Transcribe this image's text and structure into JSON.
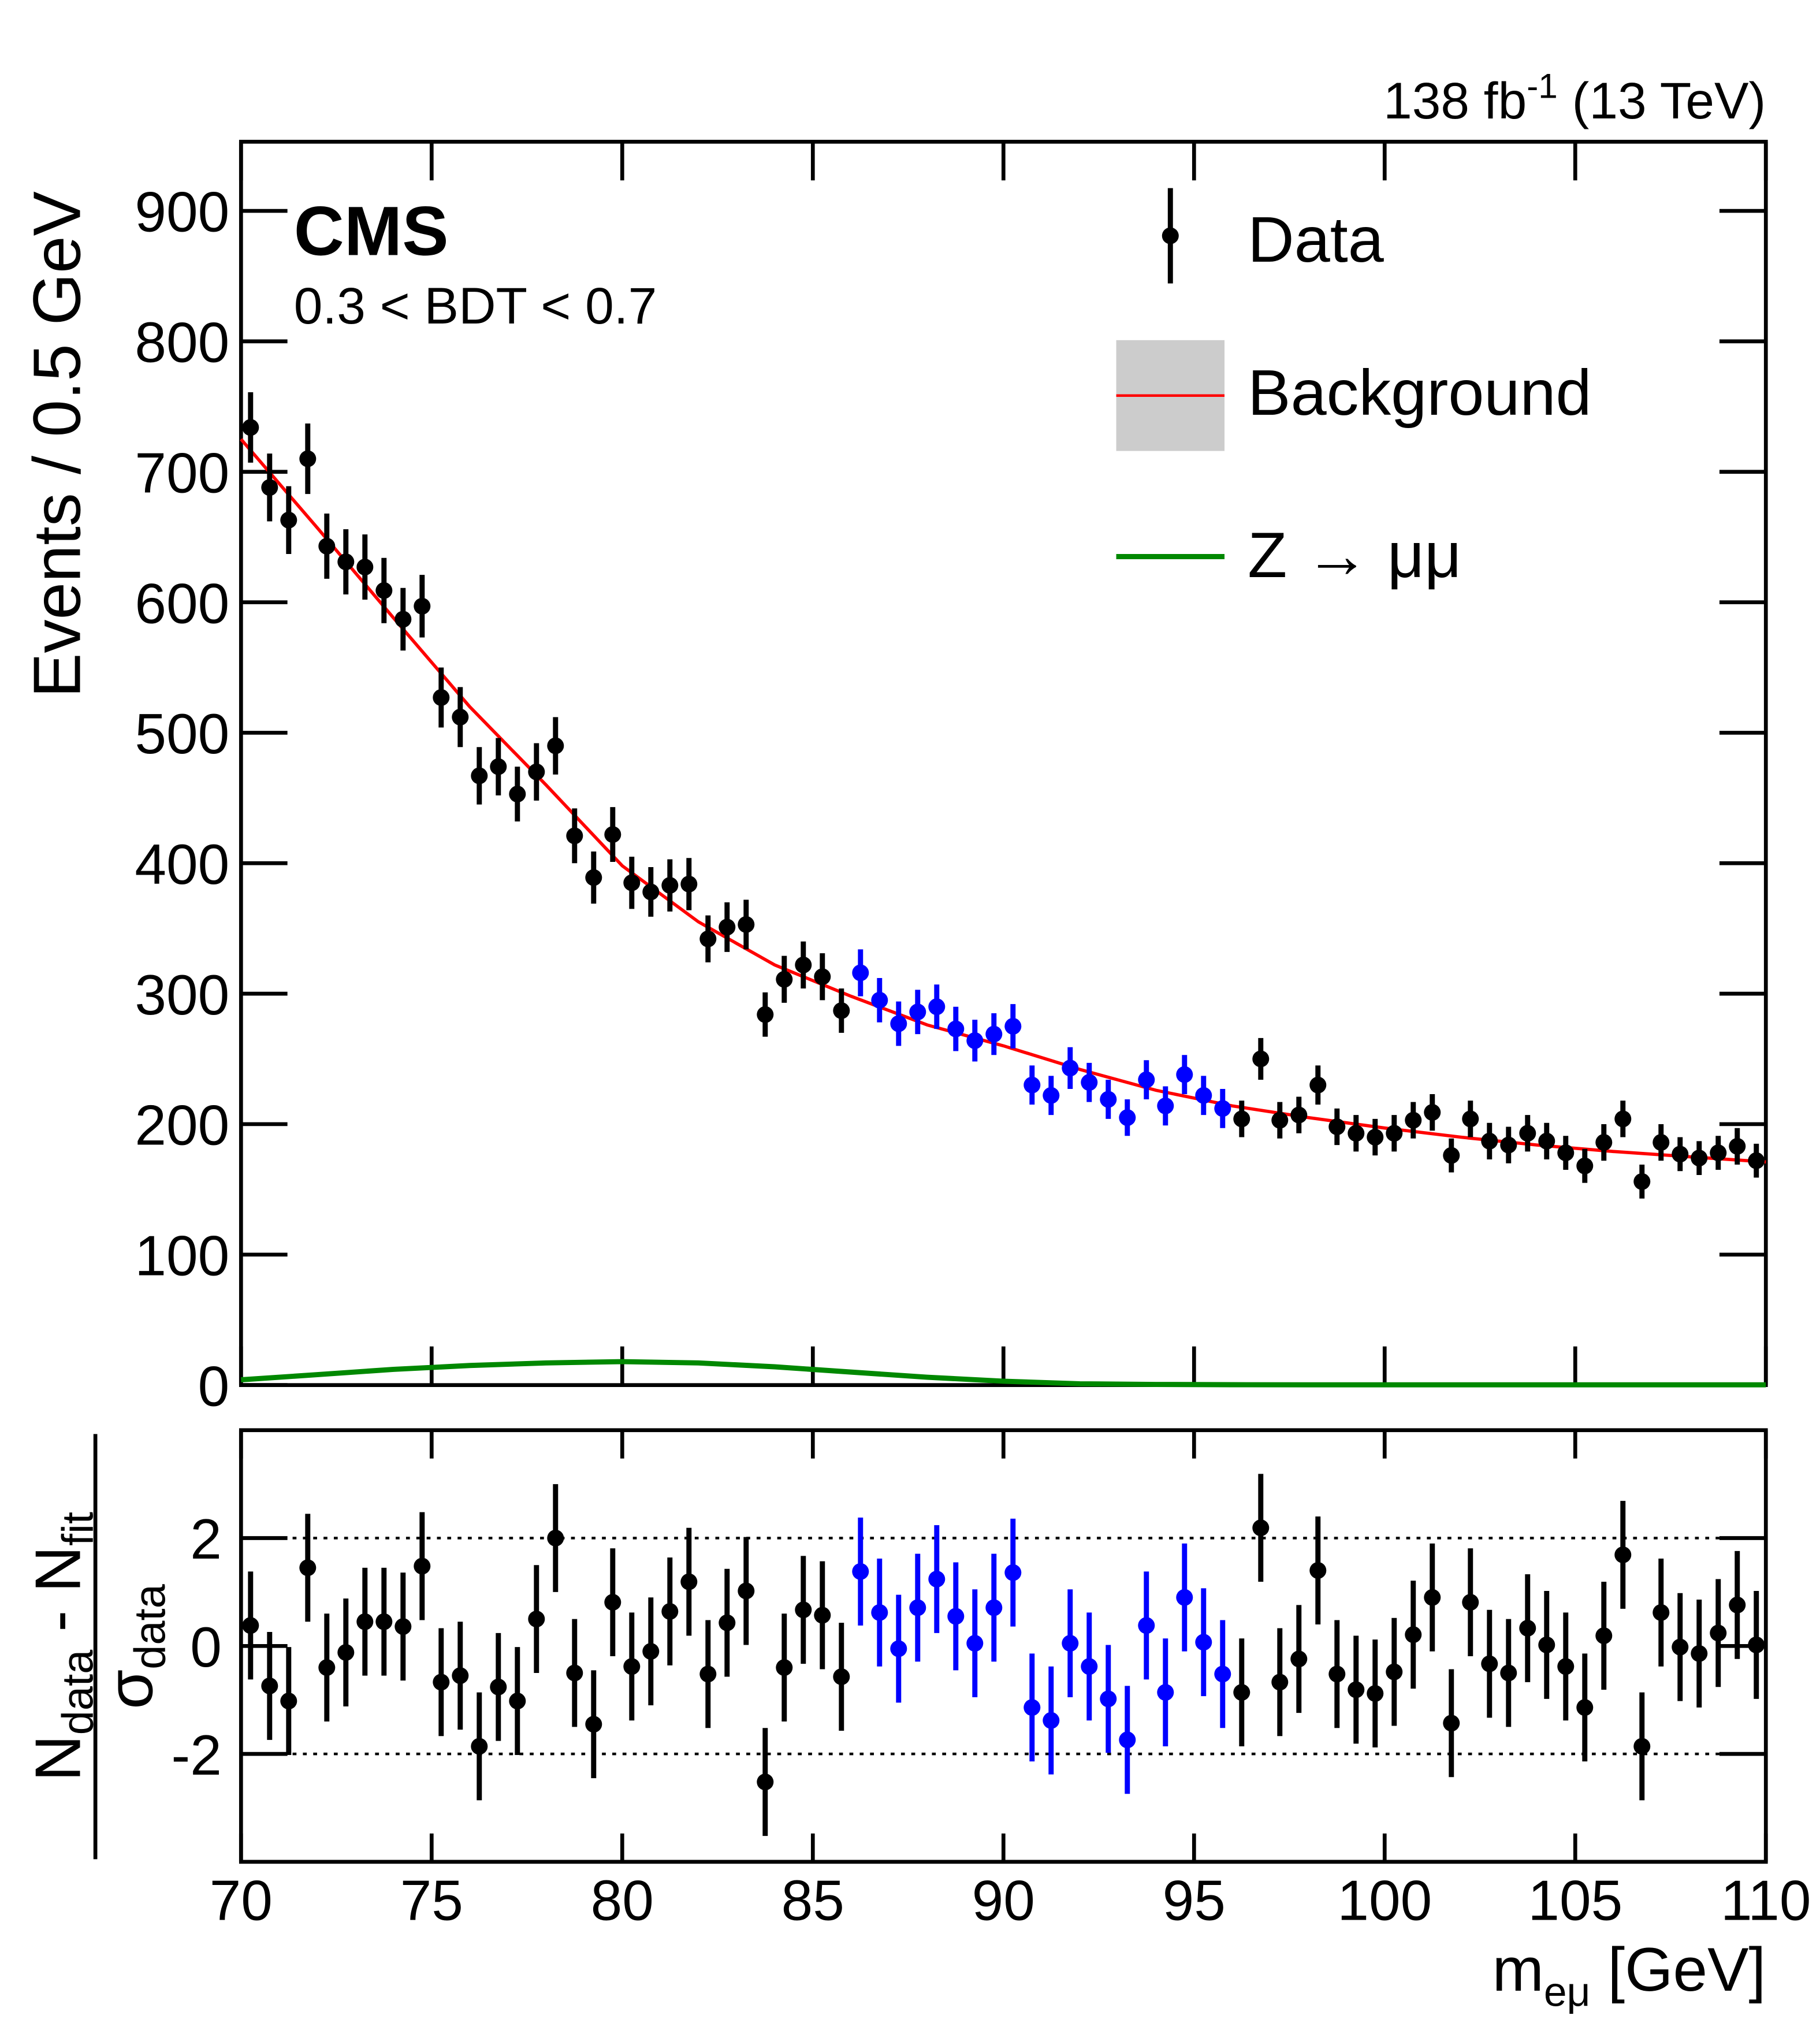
{
  "chart_data": {
    "type": "scatter",
    "lumi": {
      "text": "138 fb",
      "sup": "-1",
      "energy": " (13 TeV)"
    },
    "experiment": "CMS",
    "selection": "0.3 < BDT < 0.7",
    "ylabel": "Events / 0.5 GeV",
    "xlabel": {
      "main": "m",
      "sub": "eμ",
      "unit": " [GeV]"
    },
    "xlim": [
      70,
      110
    ],
    "xticks": [
      70,
      75,
      80,
      85,
      90,
      95,
      100,
      105,
      110
    ],
    "ylim": [
      0,
      953
    ],
    "yticks": [
      0,
      100,
      200,
      300,
      400,
      500,
      600,
      700,
      800,
      900
    ],
    "x": [
      70.25,
      70.75,
      71.25,
      71.75,
      72.25,
      72.75,
      73.25,
      73.75,
      74.25,
      74.75,
      75.25,
      75.75,
      76.25,
      76.75,
      77.25,
      77.75,
      78.25,
      78.75,
      79.25,
      79.75,
      80.25,
      80.75,
      81.25,
      81.75,
      82.25,
      82.75,
      83.25,
      83.75,
      84.25,
      84.75,
      85.25,
      85.75,
      86.25,
      86.75,
      87.25,
      87.75,
      88.25,
      88.75,
      89.25,
      89.75,
      90.25,
      90.75,
      91.25,
      91.75,
      92.25,
      92.75,
      93.25,
      93.75,
      94.25,
      94.75,
      95.25,
      95.75,
      96.25,
      96.75,
      97.25,
      97.75,
      98.25,
      98.75,
      99.25,
      99.75,
      100.25,
      100.75,
      101.25,
      101.75,
      102.25,
      102.75,
      103.25,
      103.75,
      104.25,
      104.75,
      105.25,
      105.75,
      106.25,
      106.75,
      107.25,
      107.75,
      108.25,
      108.75,
      109.25,
      109.75
    ],
    "series": [
      {
        "name": "Data",
        "color": "#000000",
        "values": [
          734,
          688,
          663,
          710,
          643,
          631,
          627,
          609,
          587,
          597,
          527,
          512,
          467,
          474,
          453,
          470,
          490,
          421,
          389,
          422,
          385,
          378,
          383,
          384,
          342,
          351,
          353,
          284,
          311,
          322,
          313,
          287,
          316,
          295,
          277,
          286,
          290,
          273,
          264,
          269,
          275,
          230,
          222,
          243,
          232,
          219,
          205,
          234,
          214,
          238,
          222,
          212,
          204,
          250,
          203,
          207,
          230,
          198,
          193,
          190,
          193,
          203,
          209,
          176,
          204,
          187,
          184,
          193,
          187,
          178,
          168,
          186,
          204,
          156,
          186,
          177,
          174,
          178,
          183,
          172
        ],
        "errors": [
          27,
          26,
          26,
          27,
          25,
          25,
          25,
          25,
          24,
          24,
          23,
          23,
          22,
          22,
          21,
          22,
          22,
          21,
          20,
          21,
          20,
          19,
          20,
          20,
          18,
          19,
          19,
          17,
          18,
          18,
          18,
          17,
          18,
          17,
          17,
          17,
          17,
          17,
          16,
          16,
          17,
          15,
          15,
          16,
          15,
          15,
          14,
          15,
          15,
          15,
          15,
          15,
          14,
          16,
          14,
          14,
          15,
          14,
          14,
          14,
          14,
          14,
          14,
          13,
          14,
          14,
          14,
          14,
          14,
          13,
          13,
          14,
          14,
          13,
          14,
          13,
          13,
          13,
          14,
          13
        ]
      },
      {
        "name": "Background",
        "color": "#ff0000",
        "band_color": "#cccccc",
        "x": [
          70,
          72,
          74,
          76,
          78,
          80,
          82,
          84,
          86,
          88,
          90,
          92,
          94,
          96,
          98,
          100,
          102,
          104,
          106,
          108,
          110
        ],
        "values": [
          725,
          657,
          588,
          520,
          460,
          398,
          355,
          322,
          298,
          276,
          260,
          242,
          226,
          214,
          205,
          197,
          190,
          184,
          179,
          175,
          171
        ]
      },
      {
        "name": "Z → μμ",
        "color": "#008800",
        "x": [
          70,
          72,
          74,
          76,
          78,
          80,
          82,
          84,
          86,
          88,
          90,
          92,
          94,
          96,
          98,
          100,
          102,
          104,
          106,
          108,
          110
        ],
        "values": [
          4,
          8,
          12,
          15,
          17,
          18,
          17,
          14,
          10,
          6,
          3,
          1,
          0.5,
          0.3,
          0.2,
          0.2,
          0.2,
          0.2,
          0.2,
          0.2,
          0.2
        ]
      }
    ],
    "highlight": {
      "xlim": [
        86,
        96
      ],
      "color": "#0000ff"
    },
    "ratio": {
      "ylabel": {
        "n": "N",
        "data": "data",
        "minus": " - N",
        "fit": "fit",
        "sigma": "σ",
        "sdata": "data"
      },
      "ylim": [
        -4,
        4
      ],
      "yticks": [
        -2,
        0,
        2
      ],
      "reference_lines": [
        -2,
        2
      ],
      "error": 1,
      "values": [
        0.38,
        -0.74,
        -1.02,
        1.45,
        -0.4,
        -0.12,
        0.45,
        0.45,
        0.36,
        1.48,
        -0.67,
        -0.55,
        -1.86,
        -0.76,
        -1.02,
        0.5,
        2.0,
        -0.5,
        -1.45,
        0.81,
        -0.38,
        -0.1,
        0.64,
        1.19,
        -0.52,
        0.43,
        1.02,
        -2.52,
        -0.4,
        0.67,
        0.57,
        -0.57,
        1.38,
        0.62,
        -0.05,
        0.71,
        1.24,
        0.55,
        0.05,
        0.71,
        1.36,
        -1.14,
        -1.38,
        0.05,
        -0.38,
        -0.98,
        -1.74,
        0.38,
        -0.86,
        0.9,
        0.07,
        -0.52,
        -0.86,
        2.19,
        -0.67,
        -0.24,
        1.4,
        -0.52,
        -0.81,
        -0.88,
        -0.48,
        0.21,
        0.9,
        -1.43,
        0.81,
        -0.33,
        -0.5,
        0.33,
        0.02,
        -0.38,
        -1.14,
        0.19,
        1.69,
        -1.86,
        0.62,
        -0.02,
        -0.14,
        0.24,
        0.76,
        0.02
      ]
    }
  }
}
